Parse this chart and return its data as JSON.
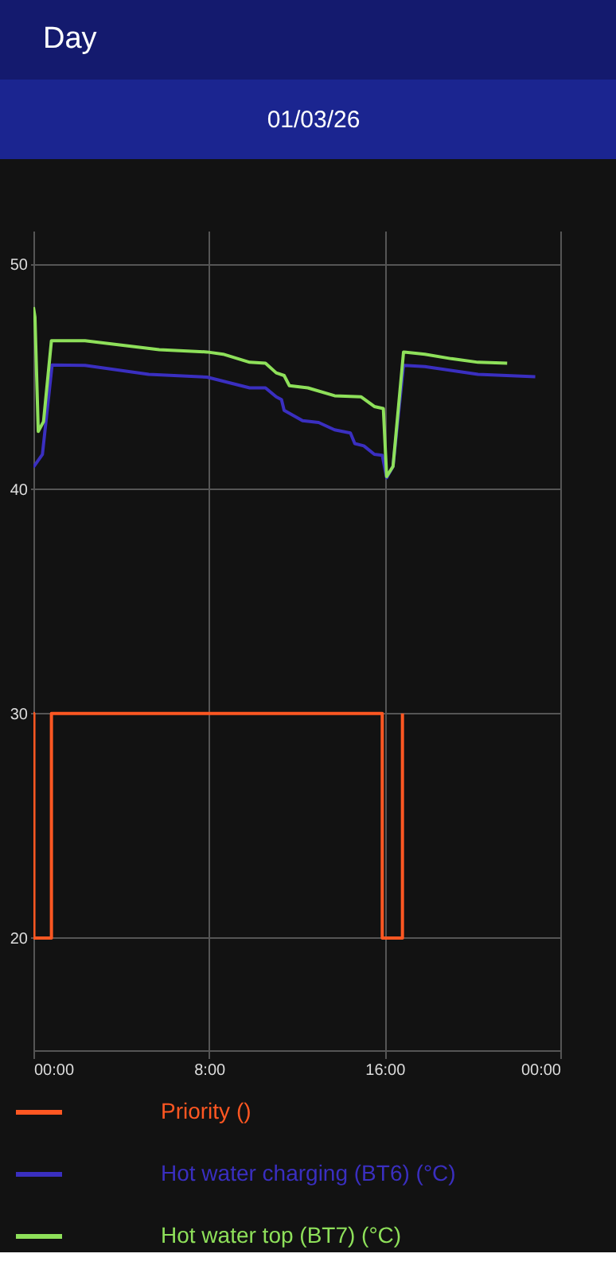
{
  "chart_data": {
    "type": "line",
    "title": "Day",
    "subtitle": "01/03/26",
    "xlim": [
      0,
      24
    ],
    "xticks": [
      {
        "value": 0,
        "label": "00:00"
      },
      {
        "value": 8,
        "label": "8:00"
      },
      {
        "value": 16,
        "label": "16:00"
      },
      {
        "value": 24,
        "label": "00:00"
      }
    ],
    "ylim": [
      15,
      51.5
    ],
    "yticks": [
      20,
      30,
      40,
      50
    ],
    "grid": true,
    "legend": "bottom",
    "series": [
      {
        "name": "Priority ()",
        "type": "step",
        "color": "#ff5722",
        "x": [
          0,
          0.02,
          0.82,
          15.89,
          16.81
        ],
        "values": [
          30,
          20,
          30,
          20,
          30
        ]
      },
      {
        "name": "Hot water charging (BT6) (°C)",
        "color": "#3a2fc0",
        "x": [
          0,
          0.41,
          0.85,
          2.35,
          5.25,
          7.91,
          9.85,
          10.57,
          11.06,
          11.3,
          11.42,
          12.26,
          12.99,
          13.72,
          14.44,
          14.64,
          15.05,
          15.53,
          15.89,
          16.09,
          16.38,
          16.86,
          17.83,
          20.25,
          22.86
        ],
        "values": [
          40.97,
          41.54,
          45.52,
          45.5,
          45.1,
          44.98,
          44.5,
          44.5,
          44.1,
          43.98,
          43.5,
          43.04,
          42.96,
          42.63,
          42.49,
          42.02,
          41.92,
          41.54,
          41.5,
          40.5,
          41.0,
          45.5,
          45.45,
          45.1,
          45.0
        ]
      },
      {
        "name": "Hot water top (BT7) (°C)",
        "color": "#8ee05a",
        "x": [
          0,
          0.07,
          0.22,
          0.46,
          0.82,
          2.35,
          5.73,
          7.91,
          8.64,
          9.85,
          10.57,
          11.06,
          11.42,
          11.66,
          12.5,
          13.72,
          14.93,
          15.53,
          15.94,
          16.09,
          16.38,
          16.86,
          17.83,
          19.04,
          20.25,
          21.58
        ],
        "values": [
          48.1,
          47.65,
          42.56,
          43.0,
          46.6,
          46.6,
          46.2,
          46.1,
          46.0,
          45.64,
          45.6,
          45.17,
          45.05,
          44.6,
          44.5,
          44.15,
          44.1,
          43.67,
          43.58,
          40.55,
          41.0,
          46.1,
          46.0,
          45.8,
          45.64,
          45.6
        ]
      }
    ]
  }
}
